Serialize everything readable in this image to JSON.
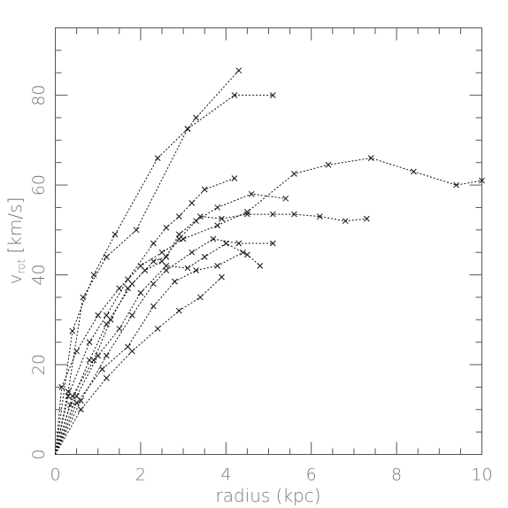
{
  "chart_data": {
    "type": "line",
    "xlabel": "radius (kpc)",
    "ylabel_main": "v",
    "ylabel_sub": "rot",
    "ylabel_unit": " [km/s]",
    "xlim": [
      0,
      10
    ],
    "ylim": [
      0,
      95
    ],
    "xticks_major": [
      0,
      2,
      4,
      6,
      8,
      10
    ],
    "xticks_minor_step": 0.5,
    "yticks_major": [
      0,
      20,
      40,
      60,
      80
    ],
    "yticks_minor_step": 5,
    "grid": false,
    "series": [
      {
        "points": [
          [
            0,
            0
          ],
          [
            0.4,
            27.5
          ],
          [
            0.9,
            40
          ],
          [
            1.4,
            49
          ],
          [
            2.4,
            66
          ],
          [
            3.1,
            72.5
          ],
          [
            3.3,
            75
          ],
          [
            4.3,
            85.5
          ]
        ]
      },
      {
        "points": [
          [
            0,
            0
          ],
          [
            0.3,
            14
          ],
          [
            0.65,
            35
          ],
          [
            1.2,
            44
          ],
          [
            1.9,
            50
          ],
          [
            3.1,
            72.5
          ],
          [
            4.2,
            80
          ],
          [
            5.1,
            80
          ]
        ]
      },
      {
        "points": [
          [
            0,
            0
          ],
          [
            0.15,
            15
          ],
          [
            0.5,
            23
          ],
          [
            1.0,
            31
          ],
          [
            1.5,
            37
          ],
          [
            2.0,
            42
          ],
          [
            2.5,
            45
          ],
          [
            3.0,
            48
          ],
          [
            3.8,
            51
          ],
          [
            4.5,
            54
          ],
          [
            5.6,
            62.5
          ],
          [
            6.4,
            64.5
          ],
          [
            7.4,
            66
          ],
          [
            8.4,
            63
          ],
          [
            9.4,
            60
          ],
          [
            10,
            61
          ]
        ]
      },
      {
        "points": [
          [
            0,
            0
          ],
          [
            0.3,
            13
          ],
          [
            0.8,
            25
          ],
          [
            1.2,
            31
          ],
          [
            1.7,
            39
          ],
          [
            2.3,
            47
          ],
          [
            2.6,
            50.5
          ],
          [
            2.9,
            53
          ],
          [
            3.2,
            56
          ],
          [
            3.5,
            59
          ],
          [
            4.2,
            61.5
          ]
        ]
      },
      {
        "points": [
          [
            0,
            0
          ],
          [
            0.35,
            11
          ],
          [
            0.8,
            21
          ],
          [
            1.2,
            29
          ],
          [
            1.8,
            38
          ],
          [
            2.3,
            43
          ],
          [
            2.6,
            44
          ],
          [
            2.9,
            49
          ],
          [
            3.4,
            53
          ],
          [
            3.9,
            52.5
          ],
          [
            4.5,
            53.5
          ],
          [
            5.1,
            53.5
          ],
          [
            5.6,
            53.5
          ],
          [
            6.2,
            53
          ],
          [
            6.8,
            52
          ],
          [
            7.3,
            52.5
          ]
        ]
      },
      {
        "points": [
          [
            0,
            0
          ],
          [
            0.4,
            13
          ],
          [
            0.9,
            21
          ],
          [
            1.3,
            30
          ],
          [
            1.7,
            37
          ],
          [
            2.1,
            41
          ],
          [
            2.5,
            43
          ],
          [
            2.9,
            48
          ],
          [
            3.3,
            52
          ],
          [
            3.8,
            55
          ],
          [
            4.6,
            58
          ],
          [
            5.4,
            57
          ]
        ]
      },
      {
        "points": [
          [
            0,
            0
          ],
          [
            0.5,
            13
          ],
          [
            1.0,
            22
          ],
          [
            1.5,
            28
          ],
          [
            2.0,
            36
          ],
          [
            2.6,
            42
          ],
          [
            3.1,
            41.5
          ],
          [
            3.5,
            44
          ],
          [
            4.0,
            47
          ],
          [
            4.5,
            44.5
          ],
          [
            4.8,
            42
          ]
        ]
      },
      {
        "points": [
          [
            0,
            0
          ],
          [
            0.6,
            12
          ],
          [
            1.2,
            22
          ],
          [
            1.8,
            31
          ],
          [
            2.3,
            38
          ],
          [
            2.6,
            41
          ],
          [
            3.2,
            45
          ],
          [
            3.7,
            48
          ],
          [
            4.3,
            47
          ],
          [
            5.1,
            47
          ]
        ]
      },
      {
        "points": [
          [
            0,
            0
          ],
          [
            0.5,
            11.5
          ],
          [
            1.1,
            19
          ],
          [
            1.7,
            24
          ],
          [
            2.3,
            33
          ],
          [
            2.8,
            38.5
          ],
          [
            3.3,
            41
          ],
          [
            3.8,
            42
          ],
          [
            4.4,
            45
          ]
        ]
      },
      {
        "points": [
          [
            0,
            0
          ],
          [
            0.6,
            10
          ],
          [
            1.2,
            17
          ],
          [
            1.8,
            23
          ],
          [
            2.4,
            28
          ],
          [
            2.9,
            32
          ],
          [
            3.4,
            35
          ],
          [
            3.9,
            39.5
          ]
        ]
      }
    ]
  }
}
